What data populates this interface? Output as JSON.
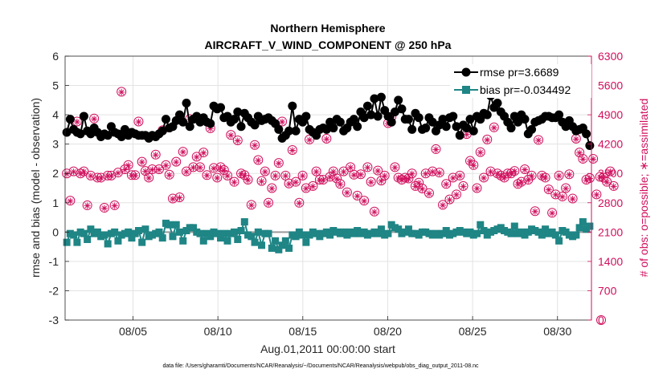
{
  "chart_data": {
    "type": "line",
    "title": "Northern Hemisphere",
    "subtitle": "AIRCRAFT_V_WIND_COMPONENT @ 250 hPa",
    "xlabel": "Aug.01,2011 00:00:00 start",
    "ylabel_left": "rmse and bias (model - observation)",
    "ylabel_right": "# of obs: o=possible; ∗=assimilated",
    "footer": "data file: /Users/gharamti/Documents/NCAR/Reanalysis/~/Documents/NCAR/Reanalysis/webpub/obs_diag_output_2011-08.nc",
    "xlim": [
      1,
      32
    ],
    "ylim_left": [
      -3,
      6
    ],
    "ylim_right": [
      0,
      6300
    ],
    "x_ticks": [
      5,
      10,
      15,
      20,
      25,
      30
    ],
    "x_tick_labels": [
      "08/05",
      "08/10",
      "08/15",
      "08/20",
      "08/25",
      "08/30"
    ],
    "y_left_ticks": [
      "6",
      "5",
      "4",
      "3",
      "2",
      "1",
      "0",
      "-1",
      "-2",
      "-3"
    ],
    "y_right_ticks": [
      "6300",
      "5600",
      "4900",
      "4200",
      "3500",
      "2800",
      "2100",
      "1400",
      "700",
      "0"
    ],
    "legend": [
      {
        "name": "rmse pr=3.6689",
        "color": "#000000"
      },
      {
        "name": "bias pr=-0.034492",
        "color": "#1f8585"
      }
    ],
    "colors": {
      "rmse": "#000000",
      "bias": "#1f8585",
      "obs": "#d0105e",
      "zero_line": "#9a9a9a"
    },
    "series": [
      {
        "name": "rmse",
        "values": [
          3.4,
          3.85,
          3.5,
          3.4,
          3.35,
          3.95,
          3.45,
          3.35,
          3.55,
          3.4,
          3.25,
          3.35,
          3.3,
          3.6,
          3.4,
          3.35,
          3.25,
          3.5,
          3.3,
          3.4,
          3.35,
          3.3,
          3.3,
          3.3,
          3.2,
          3.3,
          3.25,
          3.35,
          3.45,
          3.85,
          3.55,
          3.6,
          3.8,
          4.0,
          3.75,
          4.4,
          3.6,
          3.85,
          3.95,
          3.75,
          3.9,
          3.75,
          3.7,
          4.3,
          4.2,
          4.25,
          3.9,
          3.95,
          3.75,
          3.85,
          4.1,
          3.6,
          4.05,
          3.9,
          3.75,
          3.65,
          3.95,
          3.8,
          3.85,
          3.9,
          3.8,
          3.7,
          3.5,
          3.2,
          3.3,
          3.45,
          4.3,
          3.45,
          3.85,
          3.75,
          3.95,
          3.5,
          3.4,
          3.3,
          3.5,
          3.55,
          3.5,
          3.75,
          3.55,
          3.85,
          3.75,
          3.45,
          3.55,
          3.75,
          3.85,
          3.6,
          4.1,
          3.9,
          4.3,
          4.0,
          4.55,
          3.95,
          4.6,
          4.15,
          3.95,
          3.75,
          4.1,
          4.5,
          4.2,
          3.85,
          3.85,
          3.5,
          4.05,
          3.9,
          3.5,
          3.55,
          3.9,
          3.75,
          3.45,
          3.65,
          3.85,
          3.6,
          3.9,
          3.95,
          3.6,
          3.3,
          3.65,
          3.55,
          3.85,
          3.45,
          3.95,
          3.85,
          4.05,
          4.0,
          4.65,
          4.25,
          4.4,
          4.1,
          3.95,
          3.75,
          3.55,
          3.95,
          3.75,
          4.0,
          3.85,
          3.35,
          3.5,
          3.75,
          3.8,
          3.85,
          3.95,
          3.95,
          3.9,
          3.9,
          4.0,
          3.75,
          3.6,
          3.8,
          3.6,
          3.45,
          3.5,
          3.55,
          3.35,
          2.95
        ]
      },
      {
        "name": "bias",
        "values": [
          -0.35,
          -0.05,
          -0.1,
          -0.35,
          0.0,
          -0.05,
          -0.25,
          0.1,
          -0.05,
          0.0,
          -0.15,
          -0.1,
          -0.4,
          -0.05,
          0.0,
          -0.3,
          -0.1,
          -0.05,
          0.0,
          -0.2,
          -0.05,
          0.05,
          -0.35,
          0.1,
          -0.15,
          -0.1,
          -0.05,
          0.0,
          -0.2,
          0.3,
          0.25,
          -0.15,
          0.25,
          0.0,
          -0.3,
          0.05,
          0.15,
          0.15,
          0.0,
          -0.05,
          -0.3,
          -0.05,
          -0.15,
          0.0,
          -0.05,
          -0.2,
          -0.05,
          -0.3,
          -0.05,
          0.0,
          -0.25,
          0.05,
          0.35,
          -0.1,
          -0.15,
          -0.35,
          0.0,
          -0.45,
          -0.05,
          -0.05,
          -0.55,
          -0.3,
          -0.6,
          -0.45,
          -0.3,
          -0.55,
          -0.1,
          -0.15,
          0.0,
          -0.1,
          -0.35,
          -0.1,
          0.0,
          -0.05,
          -0.15,
          -0.05,
          0.0,
          -0.1,
          0.05,
          0.0,
          -0.05,
          0.0,
          -0.1,
          0.0,
          -0.05,
          0.05,
          -0.05,
          0.0,
          -0.1,
          -0.05,
          0.0,
          -0.05,
          0.1,
          -0.1,
          -0.05,
          0.25,
          0.15,
          0.1,
          -0.05,
          0.0,
          0.1,
          -0.05,
          -0.05,
          -0.1,
          0.0,
          0.0,
          -0.05,
          -0.1,
          -0.05,
          -0.1,
          -0.05,
          0.05,
          -0.1,
          -0.05,
          0.0,
          0.05,
          0.0,
          -0.05,
          0.0,
          -0.1,
          -0.05,
          0.25,
          0.05,
          -0.1,
          0.0,
          0.05,
          0.1,
          0.15,
          0.05,
          0.0,
          -0.05,
          0.2,
          -0.05,
          0.0,
          -0.1,
          0.0,
          0.1,
          0.05,
          0.0,
          -0.1,
          0.1,
          -0.05,
          0.0,
          -0.1,
          -0.3,
          0.05,
          0.0,
          -0.1,
          -0.15,
          -0.1,
          0.15,
          0.35,
          0.1,
          0.2
        ]
      },
      {
        "name": "obs_possible",
        "axis": "right",
        "values": [
          3500,
          2850,
          3550,
          4740,
          3500,
          3550,
          2740,
          3450,
          4810,
          3400,
          3400,
          2680,
          3450,
          3450,
          2740,
          3520,
          5450,
          3600,
          3700,
          3460,
          3460,
          4740,
          3780,
          3560,
          3400,
          3600,
          3950,
          3600,
          4530,
          3700,
          3470,
          2900,
          3780,
          2930,
          4020,
          3550,
          4800,
          3650,
          3900,
          3650,
          4000,
          3460,
          4580,
          3630,
          3400,
          3650,
          3580,
          3450,
          4420,
          3300,
          4290,
          3500,
          3460,
          3350,
          2750,
          4180,
          3820,
          3320,
          3550,
          2800,
          3150,
          3450,
          3750,
          4740,
          3450,
          3260,
          4060,
          3300,
          2800,
          3450,
          3150,
          4310,
          3200,
          3550,
          3350,
          3350,
          4330,
          3420,
          3550,
          3380,
          3250,
          3550,
          3050,
          3650,
          3470,
          2970,
          3480,
          2850,
          3650,
          3300,
          2590,
          3570,
          3330,
          3450,
          4700,
          4850,
          3650,
          3400,
          3350,
          3400,
          3380,
          3500,
          3200,
          3280,
          3140,
          3500,
          3030,
          3550,
          4080,
          3520,
          2750,
          3250,
          2880,
          3400,
          3000,
          3450,
          3200,
          4440,
          3800,
          3700,
          3150,
          4010,
          3400,
          4310,
          3550,
          4600,
          3500,
          3450,
          3400,
          3500,
          3500,
          3560,
          3250,
          3300,
          3600,
          3350,
          3450,
          2600,
          4300,
          3450,
          3400,
          3120,
          2560,
          3000,
          3450,
          2950,
          3150,
          3480,
          2900,
          4330,
          4000,
          3850,
          3350,
          3390,
          3850,
          3000,
          3420,
          3400,
          3300,
          3550,
          3200
        ]
      },
      {
        "name": "obs_assimilated",
        "axis": "right",
        "values": [
          3490,
          2840,
          3540,
          4730,
          3490,
          3540,
          2730,
          3440,
          4800,
          3390,
          3390,
          2670,
          3440,
          3440,
          2730,
          3510,
          5440,
          3590,
          3690,
          3450,
          3450,
          4730,
          3770,
          3550,
          3390,
          3590,
          3940,
          3590,
          4520,
          3690,
          3460,
          2890,
          3770,
          2920,
          4010,
          3540,
          4790,
          3640,
          3890,
          3640,
          3990,
          3450,
          4570,
          3620,
          3390,
          3640,
          3570,
          3440,
          4410,
          3290,
          4280,
          3490,
          3450,
          3340,
          2740,
          4170,
          3810,
          3310,
          3540,
          2790,
          3140,
          3440,
          3740,
          4730,
          3440,
          3250,
          4050,
          3290,
          2790,
          3440,
          3140,
          4300,
          3190,
          3540,
          3340,
          3340,
          4320,
          3410,
          3540,
          3370,
          3240,
          3540,
          3040,
          3640,
          3460,
          2960,
          3470,
          2840,
          3640,
          3290,
          2580,
          3560,
          3320,
          3440,
          4690,
          4840,
          3640,
          3390,
          3340,
          3390,
          3370,
          3490,
          3190,
          3270,
          3130,
          3490,
          3020,
          3540,
          4070,
          3510,
          2740,
          3240,
          2870,
          3390,
          2990,
          3440,
          3190,
          4430,
          3790,
          3690,
          3140,
          4000,
          3390,
          4300,
          3540,
          4590,
          3490,
          3440,
          3390,
          3490,
          3490,
          3550,
          3240,
          3290,
          3590,
          3340,
          3440,
          2590,
          4290,
          3440,
          3390,
          3110,
          2550,
          2990,
          3440,
          2940,
          3140,
          3470,
          2890,
          4320,
          3990,
          3840,
          3340,
          3380,
          3840,
          2990,
          3410,
          3390,
          3290,
          3540,
          3190
        ]
      }
    ]
  }
}
